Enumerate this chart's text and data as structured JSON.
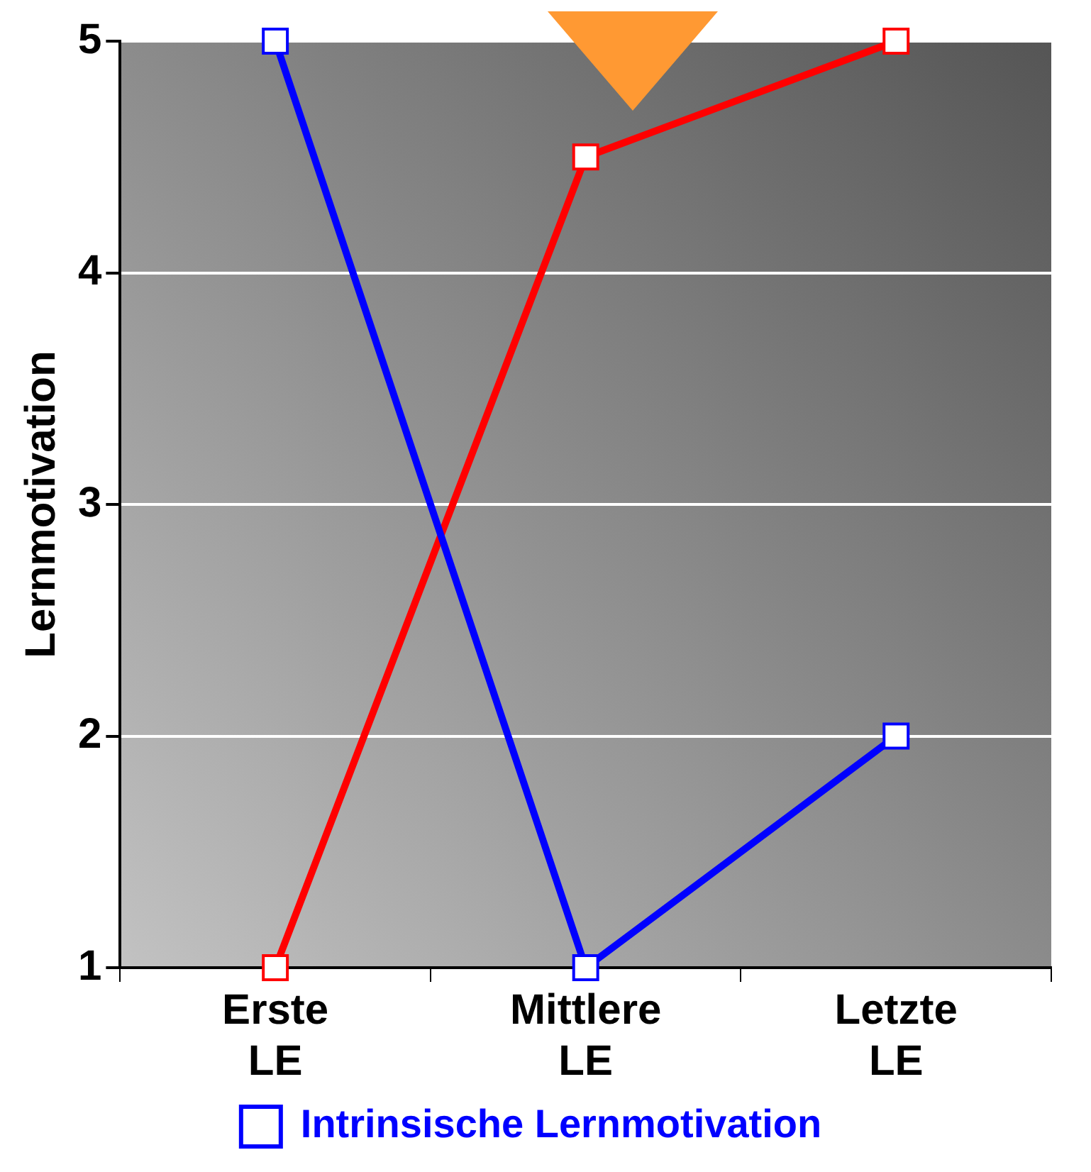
{
  "chart_data": {
    "type": "line",
    "ylabel": "Lernmotivation",
    "categories": [
      "Erste LE",
      "Mittlere LE",
      "Letzte LE"
    ],
    "series": [
      {
        "name": "Intrinsische Lernmotivation",
        "color": "#0000ff",
        "values": [
          5,
          1,
          2
        ]
      },
      {
        "color": "#ff0000",
        "values": [
          1,
          4.5,
          5
        ]
      }
    ],
    "ylim": [
      1,
      5
    ],
    "yticks": [
      1,
      2,
      3,
      4,
      5
    ],
    "grid": "y",
    "legend": "bottom",
    "marker": "square",
    "line_style": "solid"
  }
}
